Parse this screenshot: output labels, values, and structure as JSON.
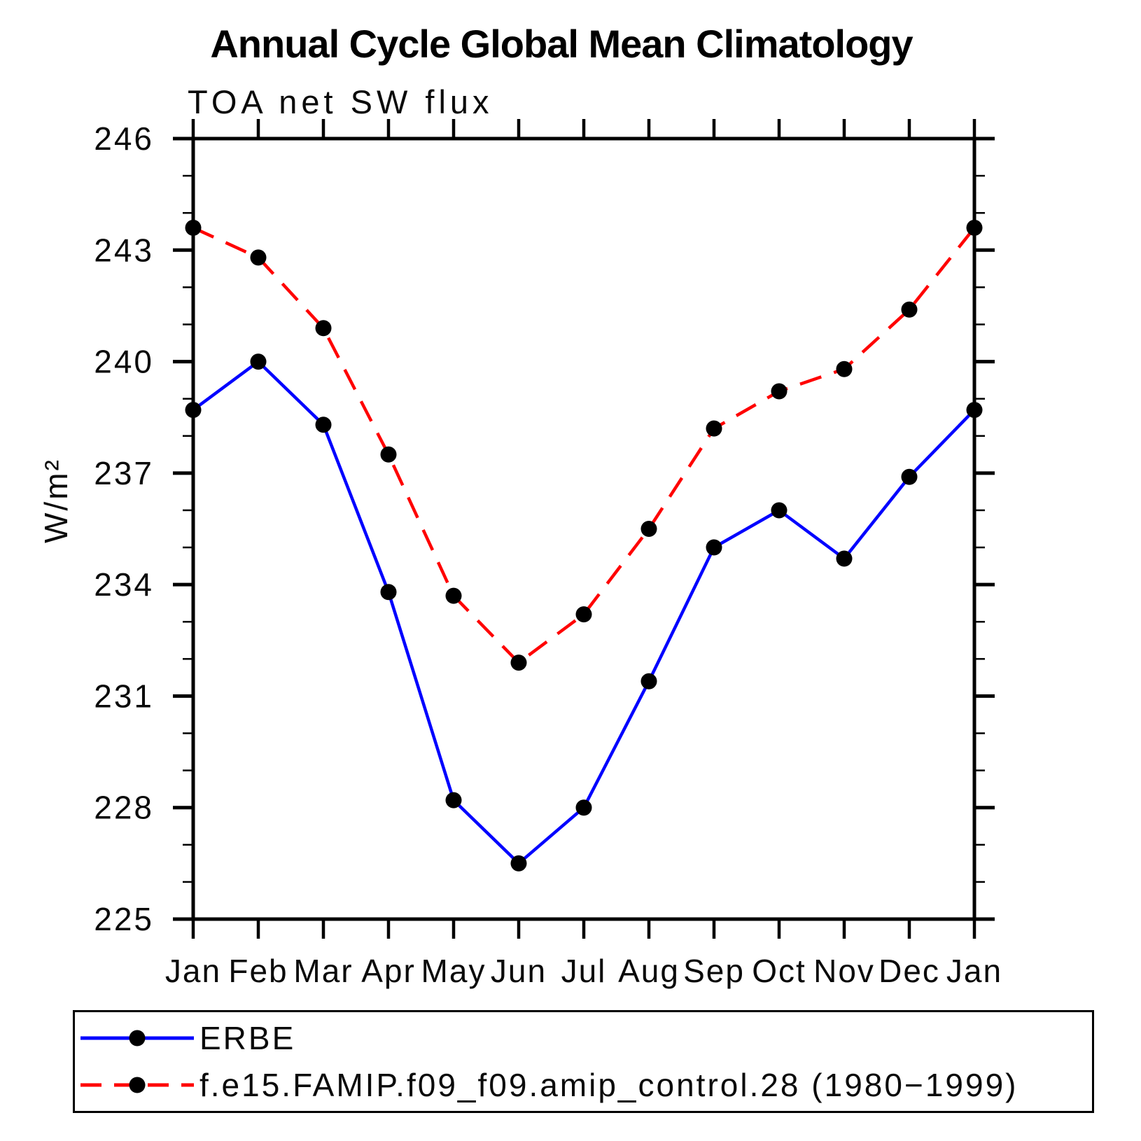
{
  "title": "Annual Cycle Global Mean Climatology",
  "subtitle": "TOA net SW flux",
  "chart_data": {
    "type": "line",
    "title": "Annual Cycle Global Mean Climatology",
    "subtitle": "TOA net SW flux",
    "xlabel": "",
    "ylabel": "W/m²",
    "categories": [
      "Jan",
      "Feb",
      "Mar",
      "Apr",
      "May",
      "Jun",
      "Jul",
      "Aug",
      "Sep",
      "Oct",
      "Nov",
      "Dec",
      "Jan"
    ],
    "ylim": [
      225,
      246
    ],
    "ytick_major_step": 3,
    "ytick_minor_step": 1,
    "ytick_labels": [
      246,
      243,
      240,
      237,
      234,
      231,
      228,
      225
    ],
    "grid": false,
    "legend_position": "bottom",
    "axis_color": "#000000",
    "series": [
      {
        "name": "ERBE",
        "color": "#0000ff",
        "style": "solid",
        "marker": "circle",
        "marker_color": "#000000",
        "values": [
          238.7,
          240.0,
          238.3,
          233.8,
          228.2,
          226.5,
          228.0,
          231.4,
          235.0,
          236.0,
          234.7,
          236.9,
          238.7
        ]
      },
      {
        "name": "f.e15.FAMIP.f09_f09.amip_control.28 (1980−1999)",
        "color": "#ff0000",
        "style": "dashed",
        "marker": "circle",
        "marker_color": "#000000",
        "values": [
          243.6,
          242.8,
          240.9,
          237.5,
          233.7,
          231.9,
          233.2,
          235.5,
          238.2,
          239.2,
          239.8,
          241.4,
          243.6
        ]
      }
    ]
  }
}
